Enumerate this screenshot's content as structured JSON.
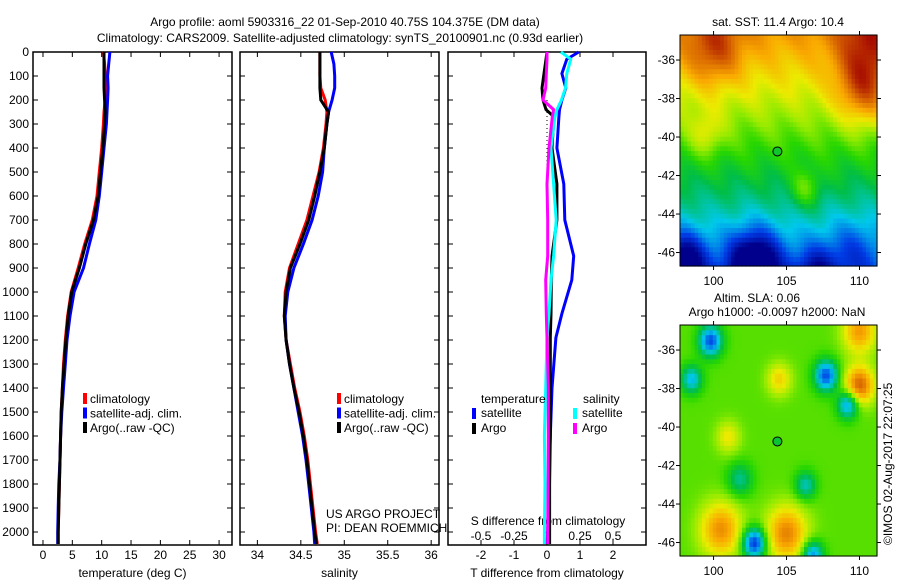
{
  "title": {
    "line1": "Argo profile: aoml 5903316_22 01-Sep-2010 40.75S 104.375E (DM data)",
    "line2": "Climatology: CARS2009. Satellite-adjusted climatology: synTS_20100901.nc (0.93d earlier)"
  },
  "credit": {
    "project": "US ARGO PROJECT",
    "pi": "PI: DEAN ROEMMICH",
    "stamp": "©IMOS 02-Aug-2017 22:07:25"
  },
  "colors": {
    "climatology": "#ff0000",
    "satellite": "#0000ff",
    "argo": "#000000",
    "salinity_satellite": "#00ffff",
    "salinity_argo": "#ff00ff"
  },
  "chart_data": [
    {
      "type": "line",
      "id": "temperature",
      "xlabel": "temperature (deg C)",
      "ylabel": "",
      "xlim": [
        -1.7,
        32.2
      ],
      "ylim": [
        2055,
        0
      ],
      "xticks": [
        "0",
        "5",
        "10",
        "15",
        "20",
        "25",
        "30"
      ],
      "xtick_values": [
        0,
        5,
        10,
        15,
        20,
        25,
        30
      ],
      "yticks": [
        "0",
        "100",
        "200",
        "300",
        "400",
        "500",
        "600",
        "700",
        "800",
        "900",
        "1000",
        "1100",
        "1200",
        "1300",
        "1400",
        "1500",
        "1600",
        "1700",
        "1800",
        "1900",
        "2000"
      ],
      "ytick_values": [
        0,
        100,
        200,
        300,
        400,
        500,
        600,
        700,
        800,
        900,
        1000,
        1100,
        1200,
        1300,
        1400,
        1500,
        1600,
        1700,
        1800,
        1900,
        2000
      ],
      "depth": [
        0,
        50,
        100,
        150,
        200,
        250,
        300,
        400,
        500,
        600,
        700,
        800,
        900,
        1000,
        1100,
        1200,
        1300,
        1400,
        1500,
        1600,
        1700,
        1800,
        1900,
        2000,
        2050
      ],
      "legend": [
        "climatology",
        "satellite-adj. clim.",
        "Argo(..raw -QC)"
      ],
      "series": [
        {
          "name": "climatology",
          "color": "#ff0000",
          "values": [
            10.3,
            10.5,
            10.6,
            10.7,
            10.6,
            10.4,
            10.3,
            10.0,
            9.6,
            9.2,
            8.4,
            7.1,
            6.0,
            4.8,
            4.2,
            3.8,
            3.5,
            3.3,
            3.1,
            3.0,
            2.9,
            2.8,
            2.7,
            2.6,
            2.6
          ]
        },
        {
          "name": "satellite-adj. clim.",
          "color": "#0000ff",
          "values": [
            11.4,
            11.2,
            11.0,
            11.1,
            11.0,
            10.9,
            10.8,
            10.4,
            10.0,
            9.6,
            9.0,
            7.9,
            6.9,
            5.3,
            4.6,
            4.1,
            3.8,
            3.5,
            3.2,
            3.0,
            2.9,
            2.7,
            2.6,
            2.5,
            2.5
          ]
        },
        {
          "name": "Argo(..raw -QC)",
          "color": "#000000",
          "values": [
            10.4,
            10.4,
            10.4,
            10.4,
            10.5,
            10.6,
            10.5,
            10.2,
            9.8,
            9.4,
            8.6,
            7.3,
            6.2,
            4.9,
            4.3,
            3.9,
            3.6,
            3.3,
            3.1,
            3.0,
            2.9,
            2.8,
            2.7,
            2.6,
            2.6
          ]
        }
      ]
    },
    {
      "type": "line",
      "id": "salinity",
      "xlabel": "salinity",
      "xlim": [
        33.8,
        36.09
      ],
      "ylim": [
        2055,
        0
      ],
      "xticks": [
        "34",
        "34.5",
        "35",
        "35.5",
        "36"
      ],
      "xtick_values": [
        34,
        34.5,
        35,
        35.5,
        36
      ],
      "depth": [
        0,
        50,
        100,
        150,
        200,
        250,
        300,
        400,
        500,
        600,
        700,
        800,
        900,
        1000,
        1100,
        1200,
        1300,
        1400,
        1500,
        1600,
        1700,
        1800,
        1900,
        2000,
        2050
      ],
      "legend": [
        "climatology",
        "satellite-adj. clim.",
        "Argo(..raw -QC)"
      ],
      "series": [
        {
          "name": "climatology",
          "color": "#ff0000",
          "values": [
            34.72,
            34.72,
            34.72,
            34.73,
            34.78,
            34.8,
            34.79,
            34.76,
            34.71,
            34.64,
            34.57,
            34.47,
            34.37,
            34.32,
            34.31,
            34.33,
            34.38,
            34.43,
            34.49,
            34.54,
            34.58,
            34.61,
            34.64,
            34.67,
            34.69
          ]
        },
        {
          "name": "satellite-adj. clim.",
          "color": "#0000ff",
          "values": [
            34.85,
            34.88,
            34.89,
            34.89,
            34.86,
            34.82,
            34.8,
            34.77,
            34.75,
            34.7,
            34.63,
            34.53,
            34.42,
            34.35,
            34.32,
            34.33,
            34.37,
            34.42,
            34.47,
            34.52,
            34.56,
            34.59,
            34.62,
            34.65,
            34.66
          ]
        },
        {
          "name": "Argo(..raw -QC)",
          "color": "#000000",
          "values": [
            34.72,
            34.72,
            34.72,
            34.72,
            34.73,
            34.82,
            34.8,
            34.77,
            34.72,
            34.66,
            34.59,
            34.49,
            34.38,
            34.33,
            34.31,
            34.33,
            34.37,
            34.42,
            34.48,
            34.53,
            34.57,
            34.6,
            34.63,
            34.66,
            34.68
          ]
        }
      ]
    },
    {
      "type": "line",
      "id": "difference",
      "xlabel": "T difference from climatology",
      "xlabel2": "S difference from climatology",
      "xlim": [
        -3,
        3
      ],
      "xlim_salinity": [
        -0.75,
        0.75
      ],
      "ylim": [
        2055,
        0
      ],
      "xticks": [
        "-2",
        "-1",
        "0",
        "1",
        "2"
      ],
      "xtick_values": [
        -2,
        -1,
        0,
        1,
        2
      ],
      "sticks": [
        "-0.5",
        "-0.25",
        "0",
        "0.25",
        "0.5"
      ],
      "stick_values": [
        -0.5,
        -0.25,
        0,
        0.25,
        0.5
      ],
      "depth": [
        0,
        30,
        90,
        150,
        200,
        240,
        270,
        400,
        550,
        700,
        850,
        950,
        1090,
        1190,
        1400,
        1600,
        1800,
        2000,
        2050
      ],
      "zero_line_depth": [
        200,
        800
      ],
      "legend": {
        "temperature": "temperature",
        "salinity": "salinity",
        "satellite": "satellite",
        "argo": "Argo"
      },
      "series": [
        {
          "name": "temperature satellite",
          "quantity": "T",
          "color": "#0000ff",
          "values": [
            0.96,
            0.6,
            0.45,
            0.57,
            0.45,
            0.38,
            0.36,
            0.3,
            0.51,
            0.54,
            0.81,
            0.75,
            0.45,
            0.27,
            0.15,
            0.1,
            0.05,
            0.02,
            0.0
          ]
        },
        {
          "name": "temperature Argo",
          "quantity": "T",
          "color": "#000000",
          "values": [
            0,
            -0.03,
            -0.09,
            -0.15,
            -0.12,
            -0.03,
            0.21,
            0.15,
            0.3,
            0.3,
            0.15,
            0.13,
            0.12,
            0.1,
            0.1,
            0.1,
            0.08,
            0.08,
            0.08
          ]
        },
        {
          "name": "salinity satellite",
          "quantity": "S",
          "color": "#00ffff",
          "values": [
            0.105,
            0.18,
            0.15,
            0.14,
            0.11,
            0.075,
            0.06,
            0.03,
            0.05,
            0.07,
            0.05,
            0.03,
            0.015,
            0.0,
            -0.01,
            -0.02,
            -0.015,
            -0.02,
            -0.02
          ]
        },
        {
          "name": "salinity Argo",
          "quantity": "S",
          "color": "#ff00ff",
          "values": [
            0,
            0,
            -0.005,
            -0.01,
            -0.03,
            0.05,
            0.04,
            0.015,
            0,
            0.005,
            0.005,
            -0.01,
            -0.005,
            0,
            0.01,
            0.01,
            0.008,
            0.005,
            0.005
          ]
        }
      ]
    },
    {
      "type": "heatmap",
      "id": "sst_map",
      "title": "sat. SST: 11.4 Argo: 10.4",
      "xlim": [
        97.7,
        111.2
      ],
      "ylim": [
        -46.7,
        -34.7
      ],
      "xticks": [
        "100",
        "105",
        "110"
      ],
      "xtick_values": [
        100,
        105,
        110
      ],
      "yticks": [
        "-36",
        "-38",
        "-40",
        "-42",
        "-44",
        "-46"
      ],
      "ytick_values": [
        -36,
        -38,
        -40,
        -42,
        -44,
        -46
      ],
      "value_range": [
        7,
        14
      ],
      "marker": {
        "lon": 104.375,
        "lat": -40.75
      }
    },
    {
      "type": "heatmap",
      "id": "sla_map",
      "title": "Altim. SLA: 0.06",
      "subtitle": "Argo h1000: -0.0097 h2000: NaN",
      "xlim": [
        97.7,
        111.2
      ],
      "ylim": [
        -46.7,
        -34.7
      ],
      "xticks": [
        "100",
        "105",
        "110"
      ],
      "xtick_values": [
        100,
        105,
        110
      ],
      "yticks": [
        "-36",
        "-38",
        "-40",
        "-42",
        "-44",
        "-46"
      ],
      "ytick_values": [
        -36,
        -38,
        -40,
        -42,
        -44,
        -46
      ],
      "value_range": [
        -0.3,
        0.3
      ],
      "marker": {
        "lon": 104.375,
        "lat": -40.75
      }
    }
  ]
}
